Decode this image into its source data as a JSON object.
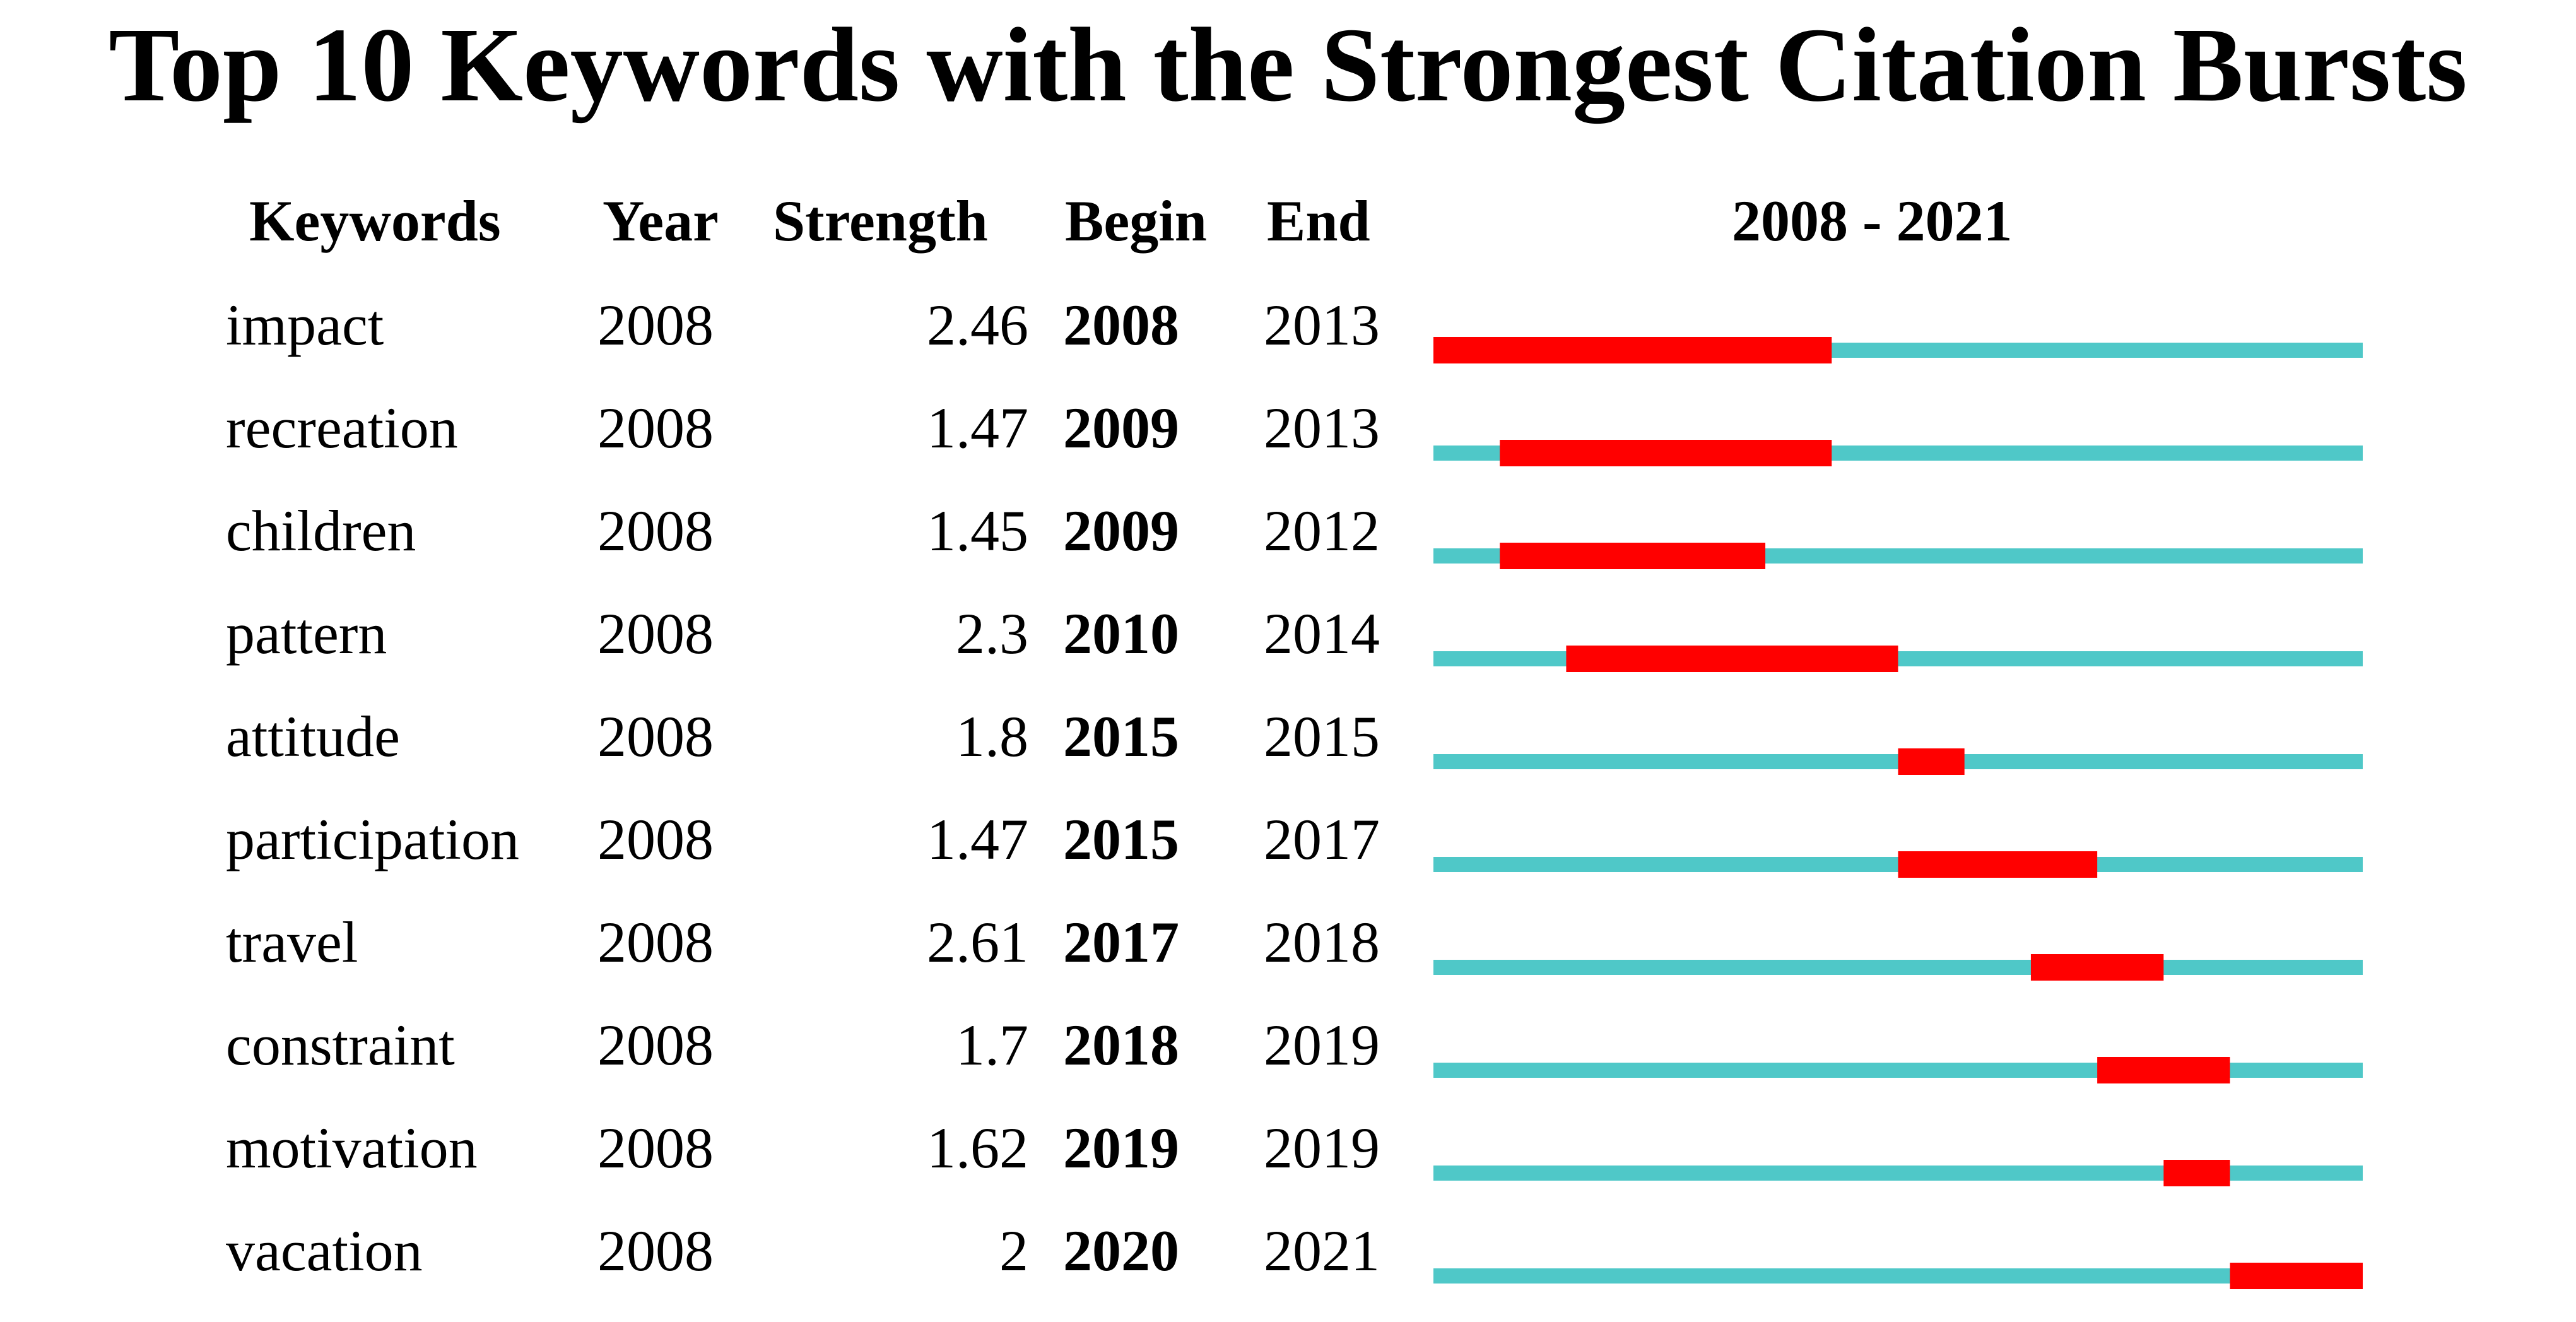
{
  "title": "Top 10 Keywords with the Strongest Citation Bursts",
  "headers": {
    "keywords": "Keywords",
    "year": "Year",
    "strength": "Strength",
    "begin": "Begin",
    "end": "End",
    "range": "2008 - 2021"
  },
  "colors": {
    "timeline": "#4fc8c8",
    "burst": "#ff0000"
  },
  "chart_data": {
    "type": "table",
    "title": "Top 10 Keywords with the Strongest Citation Bursts",
    "timeline_start": 2008,
    "timeline_end": 2021,
    "columns": [
      "Keywords",
      "Year",
      "Strength",
      "Begin",
      "End",
      "2008 - 2021"
    ],
    "rows": [
      {
        "keyword": "impact",
        "year": "2008",
        "strength": "2.46",
        "begin": "2008",
        "end": "2013"
      },
      {
        "keyword": "recreation",
        "year": "2008",
        "strength": "1.47",
        "begin": "2009",
        "end": "2013"
      },
      {
        "keyword": "children",
        "year": "2008",
        "strength": "1.45",
        "begin": "2009",
        "end": "2012"
      },
      {
        "keyword": "pattern",
        "year": "2008",
        "strength": "2.3",
        "begin": "2010",
        "end": "2014"
      },
      {
        "keyword": "attitude",
        "year": "2008",
        "strength": "1.8",
        "begin": "2015",
        "end": "2015"
      },
      {
        "keyword": "participation",
        "year": "2008",
        "strength": "1.47",
        "begin": "2015",
        "end": "2017"
      },
      {
        "keyword": "travel",
        "year": "2008",
        "strength": "2.61",
        "begin": "2017",
        "end": "2018"
      },
      {
        "keyword": "constraint",
        "year": "2008",
        "strength": "1.7",
        "begin": "2018",
        "end": "2019"
      },
      {
        "keyword": "motivation",
        "year": "2008",
        "strength": "1.62",
        "begin": "2019",
        "end": "2019"
      },
      {
        "keyword": "vacation",
        "year": "2008",
        "strength": "2",
        "begin": "2020",
        "end": "2021"
      }
    ]
  }
}
